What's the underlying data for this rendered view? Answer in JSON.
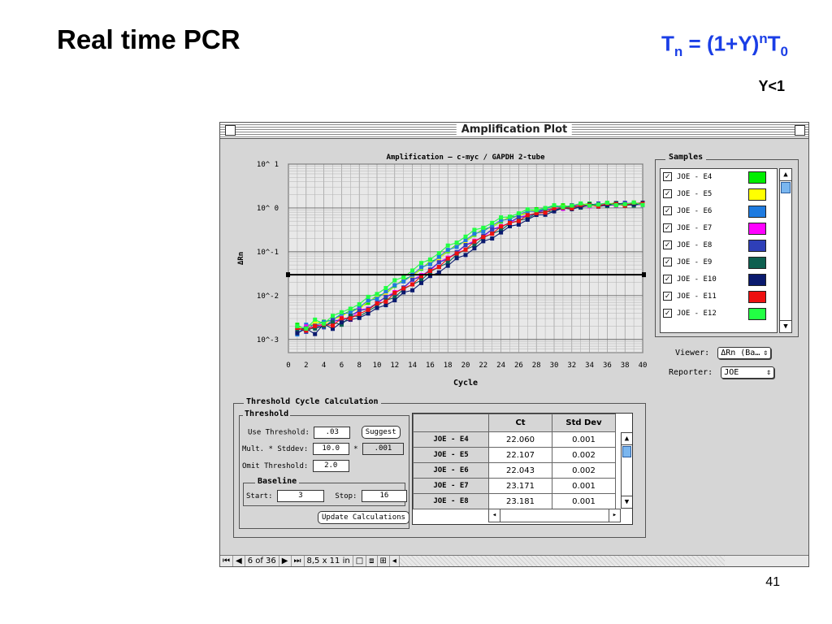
{
  "slide": {
    "title": "Real time PCR",
    "formula": {
      "t": "T",
      "sub_n": "n",
      "eq": " = (1+Y)",
      "sup_n": "n",
      "t2": "T",
      "sub_0": "0"
    },
    "note": "Y<1",
    "page_number": "41"
  },
  "window": {
    "title": "Amplification Plot"
  },
  "plot": {
    "title": "Amplification – c-myc / GAPDH   2-tube",
    "xlabel": "Cycle",
    "ylabel": "ΔRn",
    "y_ticks": [
      "10^ 1",
      "10^ 0",
      "10^-1",
      "10^-2",
      "10^-3"
    ],
    "x_ticks": [
      "0",
      "2",
      "4",
      "6",
      "8",
      "10",
      "12",
      "14",
      "16",
      "18",
      "20",
      "22",
      "24",
      "26",
      "28",
      "30",
      "32",
      "34",
      "36",
      "38",
      "40"
    ]
  },
  "chart_data": {
    "type": "line",
    "title": "Amplification – c-myc / GAPDH   2-tube",
    "xlabel": "Cycle",
    "ylabel": "ΔRn",
    "xlim": [
      0,
      40
    ],
    "ylim": [
      0.0005,
      10
    ],
    "y_scale": "log",
    "grid": true,
    "threshold": 0.03,
    "series": [
      {
        "name": "JOE - E4",
        "color": "#00ee00",
        "ct": 22.06
      },
      {
        "name": "JOE - E5",
        "color": "#ffff00",
        "ct": 22.107
      },
      {
        "name": "JOE - E6",
        "color": "#1e7be0",
        "ct": 22.043
      },
      {
        "name": "JOE - E7",
        "color": "#ff00ff",
        "ct": 23.171
      },
      {
        "name": "JOE - E8",
        "color": "#2e3fb8",
        "ct": 23.181
      },
      {
        "name": "JOE - E9",
        "color": "#0e6050",
        "ct": 23.8
      },
      {
        "name": "JOE - E10",
        "color": "#0a1a6e",
        "ct": 24.5
      },
      {
        "name": "JOE - E11",
        "color": "#ee1010",
        "ct": 23.5
      },
      {
        "name": "JOE - E12",
        "color": "#22ff44",
        "ct": 21.3
      }
    ]
  },
  "samples": {
    "label": "Samples",
    "items": [
      {
        "label": "JOE - E4",
        "color": "#00ee00",
        "checked": "✓"
      },
      {
        "label": "JOE - E5",
        "color": "#ffff00",
        "checked": "✓"
      },
      {
        "label": "JOE - E6",
        "color": "#1e7be0",
        "checked": "✓"
      },
      {
        "label": "JOE - E7",
        "color": "#ff00ff",
        "checked": "✓"
      },
      {
        "label": "JOE - E8",
        "color": "#2e3fb8",
        "checked": "✓"
      },
      {
        "label": "JOE - E9",
        "color": "#0e6050",
        "checked": "✓"
      },
      {
        "label": "JOE - E10",
        "color": "#0a1a6e",
        "checked": "✓"
      },
      {
        "label": "JOE - E11",
        "color": "#ee1010",
        "checked": "✓"
      },
      {
        "label": "JOE - E12",
        "color": "#22ff44",
        "checked": "✓"
      }
    ]
  },
  "viewer": {
    "label": "Viewer:",
    "value": "ΔRn (Ba…"
  },
  "reporter": {
    "label": "Reporter:",
    "value": "JOE"
  },
  "tcc": {
    "title": "Threshold Cycle Calculation",
    "threshold_title": "Threshold",
    "use_threshold_label": "Use Threshold:",
    "use_threshold_value": ".03",
    "suggest_label": "Suggest",
    "mult_label": "Mult. * Stddev:",
    "mult_value": "10.0",
    "mult_result": ".001",
    "star": "*",
    "omit_label": "Omit Threshold:",
    "omit_value": "2.0",
    "baseline_title": "Baseline",
    "start_label": "Start:",
    "start_value": "3",
    "stop_label": "Stop:",
    "stop_value": "16",
    "update_label": "Update Calculations"
  },
  "ct_table": {
    "headers": [
      "Ct",
      "Std Dev"
    ],
    "rows": [
      {
        "name": "JOE - E4",
        "ct": "22.060",
        "sd": "0.001"
      },
      {
        "name": "JOE - E5",
        "ct": "22.107",
        "sd": "0.002"
      },
      {
        "name": "JOE - E6",
        "ct": "22.043",
        "sd": "0.002"
      },
      {
        "name": "JOE - E7",
        "ct": "23.171",
        "sd": "0.001"
      },
      {
        "name": "JOE - E8",
        "ct": "23.181",
        "sd": "0.001"
      }
    ]
  },
  "statusbar": {
    "page": "6 of 36",
    "size": "8,5 x 11 in"
  }
}
